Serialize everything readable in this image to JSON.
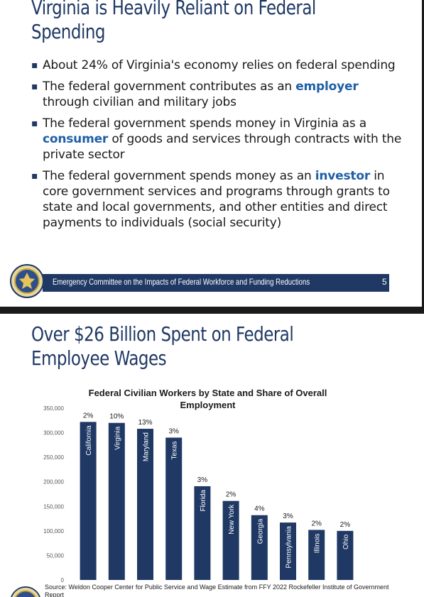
{
  "slide1": {
    "title_line1": "Virginia is Heavily Reliant on Federal",
    "title_line2": "Spending",
    "bullets": [
      {
        "text": "About 24% of Virginia's economy relies on federal spending"
      },
      {
        "before": "The federal government contributes as an ",
        "highlight": "employer",
        "after": " through civilian and military jobs"
      },
      {
        "before": "The federal government spends money in Virginia as a ",
        "highlight": "consumer",
        "after": " of goods and services through contracts with the private sector"
      },
      {
        "before": "The federal government spends money as an ",
        "highlight": "investor",
        "after": " in core government services and programs through grants to state and local governments, and other entities and direct payments to individuals (social security)"
      }
    ],
    "footer": "Emergency Committee on the Impacts of Federal Workforce and Funding Reductions",
    "page_number": "5"
  },
  "slide2": {
    "title_line1": "Over $26 Billion Spent on Federal",
    "title_line2": "Employee Wages",
    "source": "Source: Weldon Cooper Center for Public Service and Wage Estimate from FFY 2022 Rockefeller Institute of Government Report"
  },
  "colors": {
    "title": "#1f3864",
    "bar": "#1f3864",
    "highlight": "#1f5fa6"
  },
  "chart_data": {
    "type": "bar",
    "title": "Federal Civilian Workers by State and Share of Overall Employment",
    "categories": [
      "California",
      "Virginia",
      "Maryland",
      "Texas",
      "Florida",
      "New York",
      "Georgia",
      "Pennsylvania",
      "Illinois",
      "Ohio"
    ],
    "values": [
      322000,
      320000,
      308000,
      290000,
      191000,
      161000,
      132000,
      117000,
      102000,
      100000
    ],
    "data_labels": [
      "2%",
      "10%",
      "13%",
      "3%",
      "3%",
      "2%",
      "4%",
      "3%",
      "2%",
      "2%"
    ],
    "ylim": [
      0,
      350000
    ],
    "yticks": [
      0,
      50000,
      100000,
      150000,
      200000,
      250000,
      300000,
      350000
    ],
    "ytick_labels": [
      "0",
      "50,000",
      "100,000",
      "150,000",
      "200,000",
      "250,000",
      "300,000",
      "350,000"
    ],
    "grid": false
  }
}
